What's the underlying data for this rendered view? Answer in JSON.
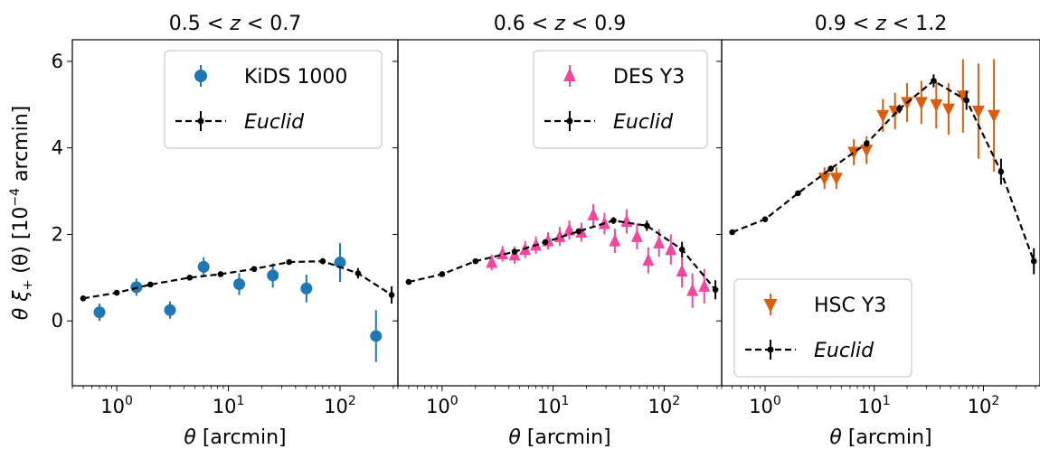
{
  "chart_data": {
    "type": "scatter",
    "x_scale": "log",
    "xlim": [
      0.4,
      330
    ],
    "ylim": [
      -1.5,
      6.5
    ],
    "ylabel_parts": [
      "θ ξ",
      "+",
      " (θ) [10",
      "−4",
      " arcmin]"
    ],
    "xlabel_parts": [
      "θ",
      " [arcmin]"
    ],
    "x_tick_labels": [
      {
        "value": 1,
        "base": "10",
        "exp": "0"
      },
      {
        "value": 10,
        "base": "10",
        "exp": "1"
      },
      {
        "value": 100,
        "base": "10",
        "exp": "2"
      }
    ],
    "y_ticks": [
      0,
      2,
      4,
      6
    ],
    "y_tick_labels": [
      "0",
      "2",
      "4",
      "6"
    ],
    "panels": [
      {
        "title_parts": [
          "0.5 < ",
          "z",
          " < 0.7"
        ],
        "legend_loc": "upper right",
        "series": [
          {
            "name": "KiDS 1000",
            "style": "italic-none",
            "marker": "circle",
            "color": "#1f77b4",
            "points": [
              {
                "x": 0.7,
                "y": 0.2,
                "err": 0.2
              },
              {
                "x": 1.5,
                "y": 0.78,
                "err": 0.2
              },
              {
                "x": 3.0,
                "y": 0.25,
                "err": 0.2
              },
              {
                "x": 6.0,
                "y": 1.25,
                "err": 0.22
              },
              {
                "x": 12.5,
                "y": 0.85,
                "err": 0.25
              },
              {
                "x": 25.0,
                "y": 1.05,
                "err": 0.28
              },
              {
                "x": 50.0,
                "y": 0.75,
                "err": 0.32
              },
              {
                "x": 100.0,
                "y": 1.35,
                "err": 0.45
              },
              {
                "x": 210.0,
                "y": -0.35,
                "err": 0.6
              }
            ]
          },
          {
            "name": "Euclid",
            "italic": true,
            "marker": "line-dot",
            "color": "#000000",
            "points": [
              {
                "x": 0.5,
                "y": 0.52,
                "err": 0.03
              },
              {
                "x": 1.0,
                "y": 0.65,
                "err": 0.03
              },
              {
                "x": 2.0,
                "y": 0.84,
                "err": 0.03
              },
              {
                "x": 4.5,
                "y": 1.0,
                "err": 0.04
              },
              {
                "x": 8.5,
                "y": 1.08,
                "err": 0.04
              },
              {
                "x": 17.0,
                "y": 1.2,
                "err": 0.04
              },
              {
                "x": 35.0,
                "y": 1.36,
                "err": 0.05
              },
              {
                "x": 70.0,
                "y": 1.38,
                "err": 0.07
              },
              {
                "x": 145.0,
                "y": 1.1,
                "err": 0.12
              },
              {
                "x": 290.0,
                "y": 0.6,
                "err": 0.2
              }
            ]
          }
        ]
      },
      {
        "title_parts": [
          "0.6 < ",
          "z",
          " < 0.9"
        ],
        "legend_loc": "upper right",
        "series": [
          {
            "name": "DES Y3",
            "marker": "triangle-up",
            "color": "#f0489c",
            "points": [
              {
                "x": 2.8,
                "y": 1.35,
                "err": 0.18
              },
              {
                "x": 3.5,
                "y": 1.55,
                "err": 0.18
              },
              {
                "x": 4.5,
                "y": 1.52,
                "err": 0.2
              },
              {
                "x": 5.6,
                "y": 1.65,
                "err": 0.2
              },
              {
                "x": 7.0,
                "y": 1.75,
                "err": 0.2
              },
              {
                "x": 9.0,
                "y": 1.85,
                "err": 0.2
              },
              {
                "x": 11.5,
                "y": 1.95,
                "err": 0.22
              },
              {
                "x": 14.0,
                "y": 2.1,
                "err": 0.22
              },
              {
                "x": 18.0,
                "y": 2.05,
                "err": 0.22
              },
              {
                "x": 23.0,
                "y": 2.45,
                "err": 0.25
              },
              {
                "x": 29.0,
                "y": 2.25,
                "err": 0.25
              },
              {
                "x": 36.0,
                "y": 1.85,
                "err": 0.28
              },
              {
                "x": 46.0,
                "y": 2.3,
                "err": 0.28
              },
              {
                "x": 57.0,
                "y": 1.95,
                "err": 0.3
              },
              {
                "x": 72.0,
                "y": 1.4,
                "err": 0.3
              },
              {
                "x": 90.0,
                "y": 1.8,
                "err": 0.32
              },
              {
                "x": 115.0,
                "y": 1.65,
                "err": 0.35
              },
              {
                "x": 145.0,
                "y": 1.15,
                "err": 0.38
              },
              {
                "x": 180.0,
                "y": 0.7,
                "err": 0.4
              },
              {
                "x": 230.0,
                "y": 0.8,
                "err": 0.4
              }
            ]
          },
          {
            "name": "Euclid",
            "italic": true,
            "marker": "line-dot",
            "color": "#000000",
            "points": [
              {
                "x": 0.5,
                "y": 0.9,
                "err": 0.03
              },
              {
                "x": 1.0,
                "y": 1.08,
                "err": 0.03
              },
              {
                "x": 2.0,
                "y": 1.38,
                "err": 0.04
              },
              {
                "x": 4.5,
                "y": 1.6,
                "err": 0.04
              },
              {
                "x": 8.5,
                "y": 1.82,
                "err": 0.05
              },
              {
                "x": 17.0,
                "y": 2.07,
                "err": 0.06
              },
              {
                "x": 35.0,
                "y": 2.32,
                "err": 0.08
              },
              {
                "x": 70.0,
                "y": 2.2,
                "err": 0.12
              },
              {
                "x": 145.0,
                "y": 1.65,
                "err": 0.18
              },
              {
                "x": 290.0,
                "y": 0.72,
                "err": 0.22
              }
            ]
          }
        ]
      },
      {
        "title_parts": [
          "0.9 < ",
          "z",
          " < 1.2"
        ],
        "legend_loc": "lower left",
        "series": [
          {
            "name": "HSC Y3",
            "marker": "triangle-down",
            "color": "#d95f0e",
            "points": [
              {
                "x": 3.5,
                "y": 3.3,
                "err": 0.25
              },
              {
                "x": 4.5,
                "y": 3.3,
                "err": 0.25
              },
              {
                "x": 6.5,
                "y": 3.9,
                "err": 0.3
              },
              {
                "x": 8.5,
                "y": 3.95,
                "err": 0.32
              },
              {
                "x": 12.0,
                "y": 4.75,
                "err": 0.38
              },
              {
                "x": 15.5,
                "y": 4.85,
                "err": 0.42
              },
              {
                "x": 20.0,
                "y": 5.05,
                "err": 0.45
              },
              {
                "x": 27.0,
                "y": 5.05,
                "err": 0.5
              },
              {
                "x": 37.0,
                "y": 5.0,
                "err": 0.55
              },
              {
                "x": 48.0,
                "y": 4.9,
                "err": 0.6
              },
              {
                "x": 65.0,
                "y": 5.2,
                "err": 0.85
              },
              {
                "x": 90.0,
                "y": 4.85,
                "err": 1.1
              },
              {
                "x": 125.0,
                "y": 4.75,
                "err": 1.3
              }
            ]
          },
          {
            "name": "Euclid",
            "italic": true,
            "marker": "line-dot",
            "color": "#000000",
            "points": [
              {
                "x": 0.5,
                "y": 2.05,
                "err": 0.04
              },
              {
                "x": 1.0,
                "y": 2.35,
                "err": 0.05
              },
              {
                "x": 2.0,
                "y": 2.95,
                "err": 0.06
              },
              {
                "x": 4.0,
                "y": 3.52,
                "err": 0.07
              },
              {
                "x": 8.5,
                "y": 4.1,
                "err": 0.08
              },
              {
                "x": 17.0,
                "y": 4.9,
                "err": 0.1
              },
              {
                "x": 35.0,
                "y": 5.55,
                "err": 0.15
              },
              {
                "x": 70.0,
                "y": 5.1,
                "err": 0.22
              },
              {
                "x": 145.0,
                "y": 3.45,
                "err": 0.3
              },
              {
                "x": 290.0,
                "y": 1.38,
                "err": 0.3
              }
            ]
          }
        ]
      }
    ]
  }
}
